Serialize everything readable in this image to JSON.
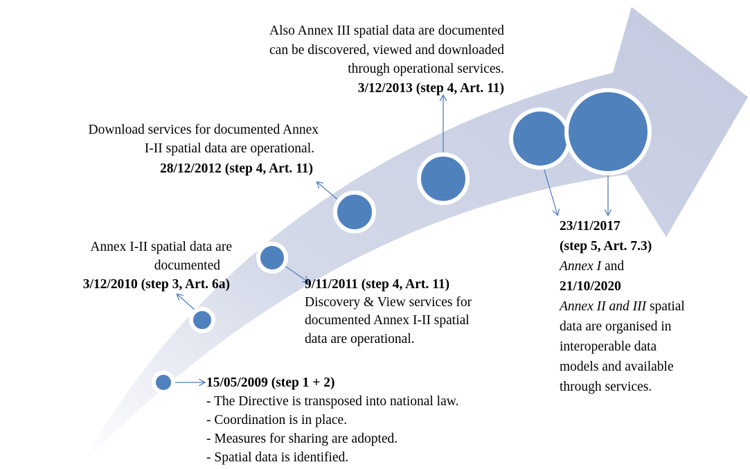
{
  "milestones": [
    {
      "date": "15/05/2009 (step 1 + 2)",
      "lines": [
        "- The Directive is transposed into national law.",
        "- Coordination is in place.",
        "- Measures for sharing are adopted.",
        "- Spatial data is identified."
      ]
    },
    {
      "lines": [
        "Annex I-II spatial data are",
        "documented"
      ],
      "date": "3/12/2010 (step 3, Art. 6a)"
    },
    {
      "date": "9/11/2011 (step 4, Art. 11)",
      "lines": [
        "Discovery & View services for",
        "documented Annex I-II spatial",
        "data are operational."
      ]
    },
    {
      "lines": [
        "Download services for documented Annex",
        "I-II spatial data are operational."
      ],
      "date": "28/12/2012 (step 4, Art. 11)"
    },
    {
      "lines": [
        "Also Annex III spatial data are documented",
        "can be discovered, viewed and downloaded",
        "through operational services."
      ],
      "date": "3/12/2013 (step 4, Art. 11)"
    },
    {
      "date": "23/11/2017",
      "step": "(step 5, Art. 7.3)",
      "annex1": "Annex I",
      "annex1_rest": " and",
      "date2": "21/10/2020",
      "annex2": "Annex II and III",
      "annex2_rest": " spatial",
      "lines": [
        "data are organised in",
        "interoperable data",
        "models and available",
        "through services."
      ]
    }
  ]
}
